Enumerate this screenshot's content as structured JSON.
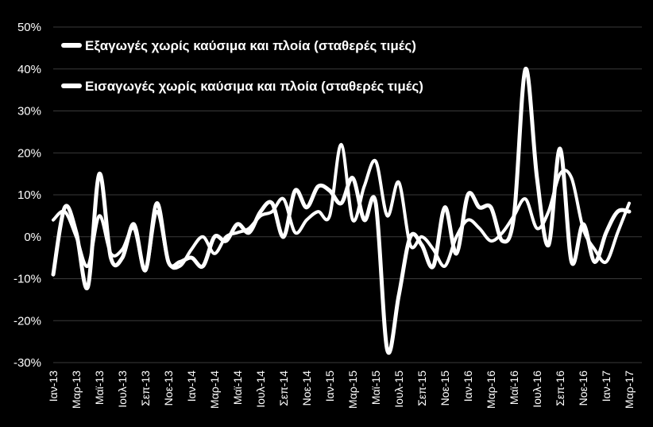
{
  "chart_data": {
    "type": "line",
    "title": "",
    "xlabel": "",
    "ylabel": "",
    "ylim": [
      -30,
      50
    ],
    "ytick_values": [
      50,
      40,
      30,
      20,
      10,
      0,
      -10,
      -20,
      -30
    ],
    "ytick_labels": [
      "50%",
      "40%",
      "30%",
      "20%",
      "10%",
      "0%",
      "-10%",
      "-20%",
      "-30%"
    ],
    "x_month_count": 51,
    "xtick_indices": [
      0,
      2,
      4,
      6,
      8,
      10,
      12,
      14,
      16,
      18,
      20,
      22,
      24,
      26,
      28,
      30,
      32,
      34,
      36,
      38,
      40,
      42,
      44,
      46,
      48,
      50
    ],
    "xtick_labels": [
      "Ιαν-13",
      "Μαρ-13",
      "Μαϊ-13",
      "Ιουλ-13",
      "Σεπ-13",
      "Νοε-13",
      "Ιαν-14",
      "Μαρ-14",
      "Μαϊ-14",
      "Ιουλ-14",
      "Σεπ-14",
      "Νοε-14",
      "Ιαν-15",
      "Μαρ-15",
      "Μαϊ-15",
      "Ιουλ-15",
      "Σεπ-15",
      "Νοε-15",
      "Ιαν-16",
      "Μαρ-16",
      "Μαϊ-16",
      "Ιουλ-16",
      "Σεπ-16",
      "Νοε-16",
      "Ιαν-17",
      "Μαρ-17"
    ],
    "grid": "horizontal",
    "legend_position": "top-left",
    "line_color": "#ffffff",
    "background_color": "#000000",
    "series": [
      {
        "name": "Εξαγωγές χωρίς καύσιμα και πλοία (σταθερές τιμές)",
        "values": [
          -9,
          7,
          1,
          -12,
          15,
          -5,
          -5,
          3,
          -8,
          8,
          -6,
          -6,
          -5,
          -7,
          0,
          -1,
          3,
          1,
          6,
          8,
          0,
          11,
          7,
          12,
          11,
          8,
          14,
          4,
          8,
          -27,
          -14,
          0,
          -2,
          -7,
          7,
          -4,
          10,
          7,
          7,
          -1,
          5,
          40,
          14,
          -2,
          21,
          -6,
          3,
          -6,
          1,
          6,
          6
        ],
        "stroke_width": 5
      },
      {
        "name": "Εισαγωγές χωρίς καύσιμα και πλοία (σταθερές τιμές)",
        "values": [
          4,
          6,
          0,
          -7,
          5,
          -4,
          -3,
          2,
          -8,
          6,
          -6,
          -7,
          -3,
          0,
          -4,
          0,
          1,
          2,
          5,
          6,
          9,
          1,
          4,
          6,
          5,
          22,
          4,
          12,
          18,
          5,
          13,
          -2,
          0,
          -3,
          -7,
          0,
          4,
          2,
          -1,
          1,
          5,
          9,
          2,
          6,
          15,
          14,
          2,
          -3,
          -6,
          1,
          8
        ],
        "stroke_width": 4
      }
    ]
  }
}
